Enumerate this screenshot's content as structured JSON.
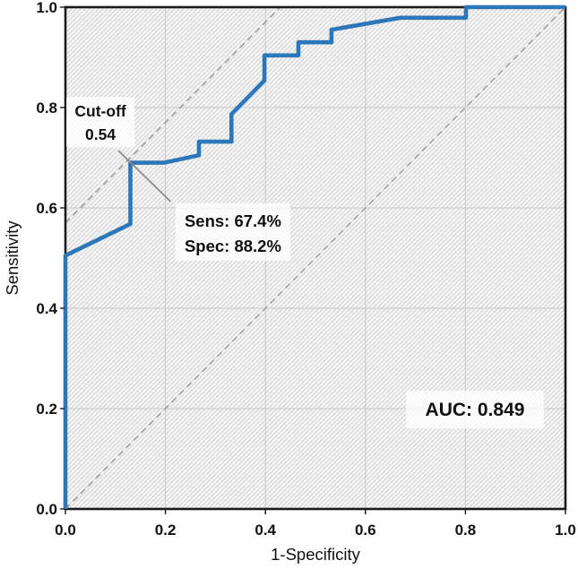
{
  "chart_data": {
    "type": "line",
    "subtype": "roc-curve",
    "title": "",
    "xlabel": "1-Specificity",
    "ylabel": "Sensitivity",
    "xlim": [
      0,
      1
    ],
    "ylim": [
      0,
      1
    ],
    "grid": true,
    "background_texture": "diagonal-hatch",
    "legend": "none",
    "x_axis": {
      "tick_values": [
        0,
        0.2,
        0.4,
        0.6,
        0.8,
        1.0
      ],
      "tick_labels": [
        "0.0",
        "0.2",
        "0.4",
        "0.6",
        "0.8",
        "1.0"
      ]
    },
    "y_axis": {
      "tick_values": [
        0,
        0.2,
        0.4,
        0.6,
        0.8,
        1.0
      ],
      "tick_labels": [
        "0.0",
        "0.2",
        "0.4",
        "0.6",
        "0.8",
        "1.0"
      ]
    },
    "series": [
      {
        "name": "ROC curve",
        "color": "#2b77b9",
        "points": [
          [
            0,
            0
          ],
          [
            0,
            0.505
          ],
          [
            0.13,
            0.568
          ],
          [
            0.13,
            0.69
          ],
          [
            0.197,
            0.69
          ],
          [
            0.267,
            0.705
          ],
          [
            0.267,
            0.732
          ],
          [
            0.332,
            0.732
          ],
          [
            0.332,
            0.787
          ],
          [
            0.398,
            0.854
          ],
          [
            0.398,
            0.904
          ],
          [
            0.466,
            0.904
          ],
          [
            0.466,
            0.93
          ],
          [
            0.532,
            0.93
          ],
          [
            0.532,
            0.955
          ],
          [
            0.67,
            0.979
          ],
          [
            0.801,
            0.979
          ],
          [
            0.801,
            1.0
          ],
          [
            1.0,
            1.0
          ]
        ]
      }
    ],
    "reference_lines": [
      {
        "name": "chance-diagonal",
        "style": "dashed",
        "color": "#9e9e9e",
        "from": [
          0,
          0
        ],
        "to": [
          1,
          1
        ]
      },
      {
        "name": "youden-parallel",
        "style": "dashed",
        "color": "#9e9e9e",
        "from": [
          0,
          0.57
        ],
        "to": [
          0.43,
          1.0
        ]
      }
    ],
    "annotations": {
      "cutoff": {
        "line1": "Cut-off",
        "line2": "0.54",
        "anchor": [
          0.07,
          0.771
        ]
      },
      "sens_spec": {
        "line1": "Sens: 67.4%",
        "line2": "Spec: 88.2%",
        "anchor": [
          0.335,
          0.552
        ]
      },
      "auc": {
        "label": "AUC: 0.849",
        "anchor": [
          0.819,
          0.198
        ]
      },
      "leader_line": {
        "from": [
          0.106,
          0.714
        ],
        "to": [
          0.21,
          0.613
        ]
      }
    },
    "key_metrics": {
      "cutoff_value": 0.54,
      "sensitivity_pct": 67.4,
      "specificity_pct": 88.2,
      "auc": 0.849
    }
  },
  "colors": {
    "curve": "#2b77b9",
    "reference": "#9e9e9e",
    "grid": "#c9c9c9",
    "border": "#1a1a1a",
    "leader": "#8a8a8a",
    "annotation_bg": "rgba(255,255,255,0.78)"
  }
}
